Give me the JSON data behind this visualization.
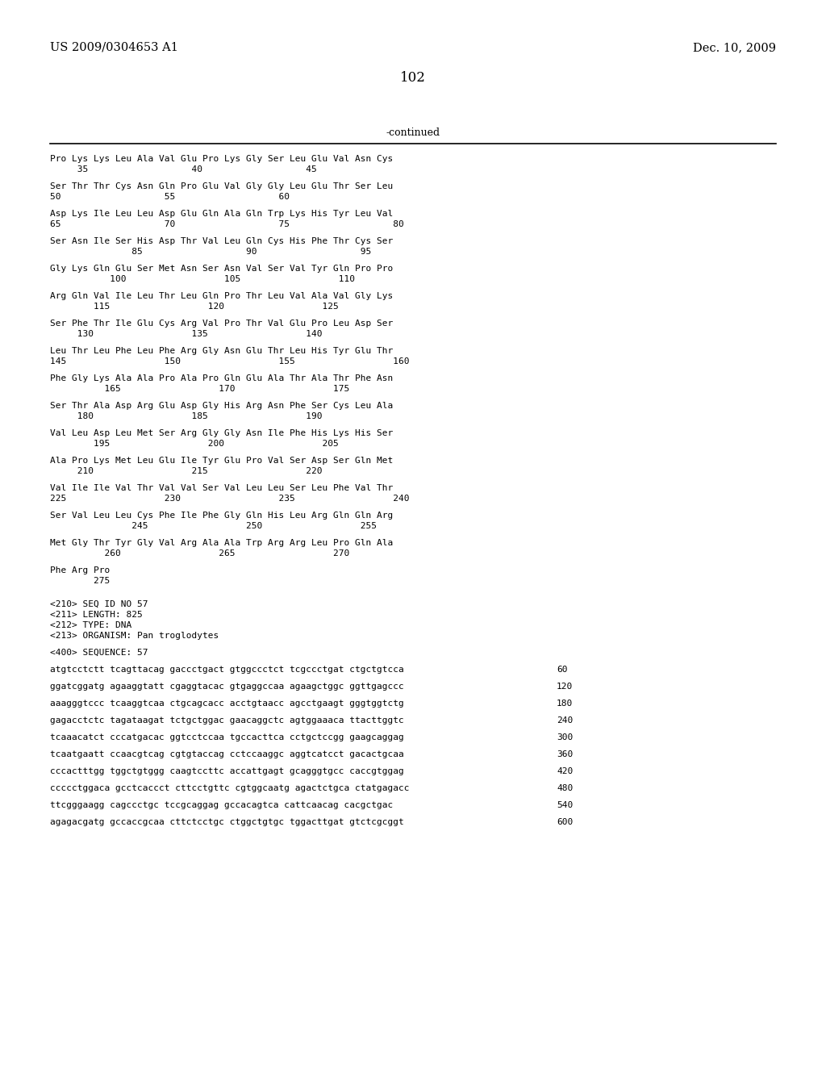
{
  "header_left": "US 2009/0304653 A1",
  "header_right": "Dec. 10, 2009",
  "page_number": "102",
  "continued_label": "-continued",
  "background_color": "#ffffff",
  "text_color": "#000000",
  "content_lines": [
    {
      "type": "seq",
      "text": "Pro Lys Lys Leu Ala Val Glu Pro Lys Gly Ser Leu Glu Val Asn Cys"
    },
    {
      "type": "num",
      "text": "     35                   40                   45"
    },
    {
      "type": "blank"
    },
    {
      "type": "seq",
      "text": "Ser Thr Thr Cys Asn Gln Pro Glu Val Gly Gly Leu Glu Thr Ser Leu"
    },
    {
      "type": "num",
      "text": "50                   55                   60"
    },
    {
      "type": "blank"
    },
    {
      "type": "seq",
      "text": "Asp Lys Ile Leu Leu Asp Glu Gln Ala Gln Trp Lys His Tyr Leu Val"
    },
    {
      "type": "num",
      "text": "65                   70                   75                   80"
    },
    {
      "type": "blank"
    },
    {
      "type": "seq",
      "text": "Ser Asn Ile Ser His Asp Thr Val Leu Gln Cys His Phe Thr Cys Ser"
    },
    {
      "type": "num",
      "text": "               85                   90                   95"
    },
    {
      "type": "blank"
    },
    {
      "type": "seq",
      "text": "Gly Lys Gln Glu Ser Met Asn Ser Asn Val Ser Val Tyr Gln Pro Pro"
    },
    {
      "type": "num",
      "text": "           100                  105                  110"
    },
    {
      "type": "blank"
    },
    {
      "type": "seq",
      "text": "Arg Gln Val Ile Leu Thr Leu Gln Pro Thr Leu Val Ala Val Gly Lys"
    },
    {
      "type": "num",
      "text": "        115                  120                  125"
    },
    {
      "type": "blank"
    },
    {
      "type": "seq",
      "text": "Ser Phe Thr Ile Glu Cys Arg Val Pro Thr Val Glu Pro Leu Asp Ser"
    },
    {
      "type": "num",
      "text": "     130                  135                  140"
    },
    {
      "type": "blank"
    },
    {
      "type": "seq",
      "text": "Leu Thr Leu Phe Leu Phe Arg Gly Asn Glu Thr Leu His Tyr Glu Thr"
    },
    {
      "type": "num",
      "text": "145                  150                  155                  160"
    },
    {
      "type": "blank"
    },
    {
      "type": "seq",
      "text": "Phe Gly Lys Ala Ala Pro Ala Pro Gln Glu Ala Thr Ala Thr Phe Asn"
    },
    {
      "type": "num",
      "text": "          165                  170                  175"
    },
    {
      "type": "blank"
    },
    {
      "type": "seq",
      "text": "Ser Thr Ala Asp Arg Glu Asp Gly His Arg Asn Phe Ser Cys Leu Ala"
    },
    {
      "type": "num",
      "text": "     180                  185                  190"
    },
    {
      "type": "blank"
    },
    {
      "type": "seq",
      "text": "Val Leu Asp Leu Met Ser Arg Gly Gly Asn Ile Phe His Lys His Ser"
    },
    {
      "type": "num",
      "text": "        195                  200                  205"
    },
    {
      "type": "blank"
    },
    {
      "type": "seq",
      "text": "Ala Pro Lys Met Leu Glu Ile Tyr Glu Pro Val Ser Asp Ser Gln Met"
    },
    {
      "type": "num",
      "text": "     210                  215                  220"
    },
    {
      "type": "blank"
    },
    {
      "type": "seq",
      "text": "Val Ile Ile Val Thr Val Val Ser Val Leu Leu Ser Leu Phe Val Thr"
    },
    {
      "type": "num",
      "text": "225                  230                  235                  240"
    },
    {
      "type": "blank"
    },
    {
      "type": "seq",
      "text": "Ser Val Leu Leu Cys Phe Ile Phe Gly Gln His Leu Arg Gln Gln Arg"
    },
    {
      "type": "num",
      "text": "               245                  250                  255"
    },
    {
      "type": "blank"
    },
    {
      "type": "seq",
      "text": "Met Gly Thr Tyr Gly Val Arg Ala Ala Trp Arg Arg Leu Pro Gln Ala"
    },
    {
      "type": "num",
      "text": "          260                  265                  270"
    },
    {
      "type": "blank"
    },
    {
      "type": "seq",
      "text": "Phe Arg Pro"
    },
    {
      "type": "num",
      "text": "        275"
    },
    {
      "type": "blank"
    },
    {
      "type": "blank"
    },
    {
      "type": "meta",
      "text": "<210> SEQ ID NO 57"
    },
    {
      "type": "meta",
      "text": "<211> LENGTH: 825"
    },
    {
      "type": "meta",
      "text": "<212> TYPE: DNA"
    },
    {
      "type": "meta",
      "text": "<213> ORGANISM: Pan troglodytes"
    },
    {
      "type": "blank"
    },
    {
      "type": "meta",
      "text": "<400> SEQUENCE: 57"
    },
    {
      "type": "blank"
    },
    {
      "type": "dna",
      "text": "atgtcctctt tcagttacag gaccctgact gtggccctct tcgccctgat ctgctgtcca",
      "num": "60"
    },
    {
      "type": "blank"
    },
    {
      "type": "dna",
      "text": "ggatcggatg agaaggtatt cgaggtacac gtgaggccaa agaagctggc ggttgagccc",
      "num": "120"
    },
    {
      "type": "blank"
    },
    {
      "type": "dna",
      "text": "aaagggtccc tcaaggtcaa ctgcagcacc acctgtaacc agcctgaagt gggtggtctg",
      "num": "180"
    },
    {
      "type": "blank"
    },
    {
      "type": "dna",
      "text": "gagacctctc tagataagat tctgctggac gaacaggctc agtggaaaca ttacttggtc",
      "num": "240"
    },
    {
      "type": "blank"
    },
    {
      "type": "dna",
      "text": "tcaaacatct cccatgacac ggtcctccaa tgccacttca cctgctccgg gaagcaggag",
      "num": "300"
    },
    {
      "type": "blank"
    },
    {
      "type": "dna",
      "text": "tcaatgaatt ccaacgtcag cgtgtaccag cctccaaggc aggtcatcct gacactgcaa",
      "num": "360"
    },
    {
      "type": "blank"
    },
    {
      "type": "dna",
      "text": "cccactttgg tggctgtggg caagtccttc accattgagt gcagggtgcc caccgtggag",
      "num": "420"
    },
    {
      "type": "blank"
    },
    {
      "type": "dna",
      "text": "ccccctggaca gcctcaccct cttcctgttc cgtggcaatg agactctgca ctatgagacc",
      "num": "480"
    },
    {
      "type": "blank"
    },
    {
      "type": "dna",
      "text": "ttcgggaagg cagccctgc tccgcaggag gccacagtca cattcaacag cacgctgac",
      "num": "540"
    },
    {
      "type": "blank"
    },
    {
      "type": "dna",
      "text": "agagacgatg gccaccgcaa cttctcctgc ctggctgtgc tggacttgat gtctcgcggt",
      "num": "600"
    }
  ]
}
